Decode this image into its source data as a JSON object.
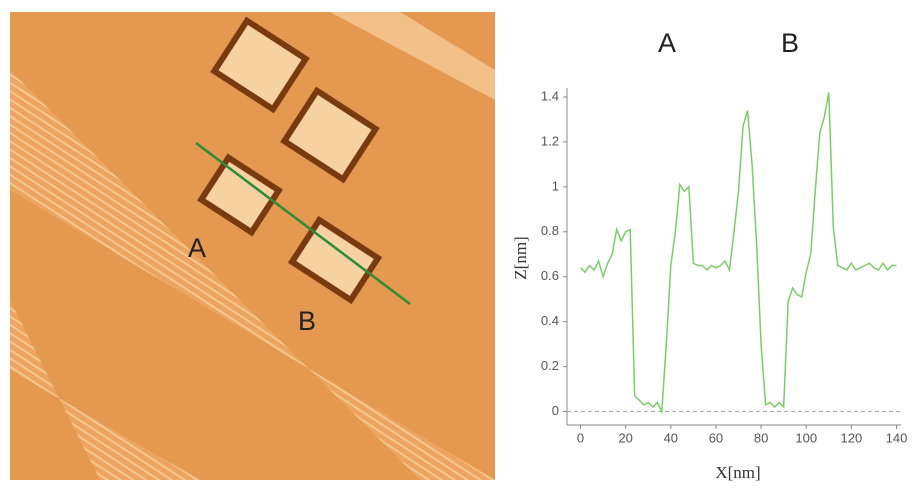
{
  "image": {
    "labels": [
      "A",
      "B"
    ]
  },
  "chart_data": {
    "type": "line",
    "annotations": [
      "A",
      "B"
    ],
    "xlabel": "X[nm]",
    "ylabel": "Z[nm]",
    "x": [
      0,
      2,
      4,
      6,
      8,
      10,
      12,
      14,
      16,
      18,
      20,
      22,
      24,
      26,
      28,
      30,
      32,
      34,
      36,
      38,
      40,
      42,
      44,
      46,
      48,
      50,
      52,
      54,
      56,
      58,
      60,
      62,
      64,
      66,
      68,
      70,
      72,
      74,
      76,
      78,
      80,
      82,
      84,
      86,
      88,
      90,
      92,
      94,
      96,
      98,
      100,
      102,
      104,
      106,
      108,
      110,
      112,
      114,
      116,
      118,
      120,
      122,
      124,
      126,
      128,
      130,
      132,
      134,
      136,
      138,
      140
    ],
    "values": [
      0.64,
      0.62,
      0.65,
      0.63,
      0.67,
      0.6,
      0.66,
      0.7,
      0.81,
      0.76,
      0.8,
      0.81,
      0.07,
      0.05,
      0.03,
      0.04,
      0.02,
      0.04,
      0.0,
      0.3,
      0.65,
      0.8,
      1.01,
      0.98,
      1.0,
      0.66,
      0.65,
      0.65,
      0.63,
      0.65,
      0.64,
      0.65,
      0.67,
      0.63,
      0.8,
      0.98,
      1.27,
      1.34,
      1.1,
      0.75,
      0.3,
      0.03,
      0.04,
      0.02,
      0.04,
      0.02,
      0.49,
      0.55,
      0.52,
      0.51,
      0.62,
      0.7,
      0.98,
      1.24,
      1.31,
      1.42,
      0.82,
      0.65,
      0.64,
      0.63,
      0.66,
      0.63,
      0.64,
      0.65,
      0.66,
      0.64,
      0.63,
      0.66,
      0.63,
      0.65,
      0.65
    ],
    "color": "#7dcc6a",
    "xlim": [
      -6,
      142
    ],
    "ylim": [
      -0.06,
      1.44
    ],
    "xticks": [
      0,
      20,
      40,
      60,
      80,
      100,
      120,
      140
    ],
    "yticks": [
      0,
      0.2,
      0.4,
      0.6,
      0.8,
      1,
      1.2,
      1.4
    ]
  }
}
